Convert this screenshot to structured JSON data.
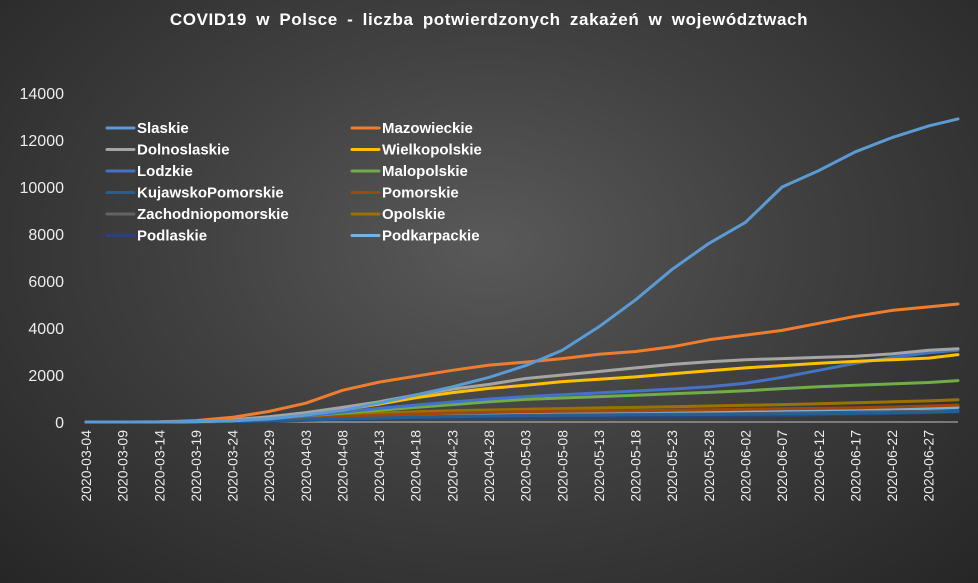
{
  "chart_data": {
    "type": "line",
    "title": "COVID19  w Polsce  - liczba potwierdzonych  zakażeń  w województwach",
    "xlabel": "",
    "ylabel": "",
    "ylim": [
      0,
      14000
    ],
    "y_ticks": [
      0,
      2000,
      4000,
      6000,
      8000,
      10000,
      12000,
      14000
    ],
    "x_tick_labels": [
      "2020-03-04",
      "2020-03-09",
      "2020-03-14",
      "2020-03-19",
      "2020-03-24",
      "2020-03-29",
      "2020-04-03",
      "2020-04-08",
      "2020-04-13",
      "2020-04-18",
      "2020-04-23",
      "2020-04-28",
      "2020-05-03",
      "2020-05-08",
      "2020-05-13",
      "2020-05-18",
      "2020-05-23",
      "2020-05-28",
      "2020-06-02",
      "2020-06-07",
      "2020-06-12",
      "2020-06-17",
      "2020-06-22",
      "2020-06-27"
    ],
    "x": [
      "2020-03-04",
      "2020-03-09",
      "2020-03-14",
      "2020-03-19",
      "2020-03-24",
      "2020-03-29",
      "2020-04-03",
      "2020-04-08",
      "2020-04-13",
      "2020-04-18",
      "2020-04-23",
      "2020-04-28",
      "2020-05-03",
      "2020-05-08",
      "2020-05-13",
      "2020-05-18",
      "2020-05-23",
      "2020-05-28",
      "2020-06-02",
      "2020-06-07",
      "2020-06-12",
      "2020-06-17",
      "2020-06-22",
      "2020-06-27",
      "2020-07-01"
    ],
    "grid": false,
    "legend_position": "top-left",
    "series": [
      {
        "name": "Slaskie",
        "color": "#5b9bd5",
        "values": [
          0,
          0,
          0,
          20,
          60,
          140,
          300,
          500,
          800,
          1150,
          1500,
          1900,
          2400,
          3050,
          4050,
          5200,
          6500,
          7600,
          8500,
          10000,
          10700,
          11500,
          12100,
          12600,
          12900
        ]
      },
      {
        "name": "Mazowieckie",
        "color": "#ed7d31",
        "values": [
          0,
          0,
          5,
          60,
          200,
          450,
          800,
          1350,
          1700,
          1950,
          2200,
          2420,
          2550,
          2700,
          2880,
          3000,
          3200,
          3500,
          3700,
          3900,
          4200,
          4500,
          4750,
          4900,
          5020
        ]
      },
      {
        "name": "Dolnoslaskie",
        "color": "#a5a5a5",
        "values": [
          0,
          0,
          3,
          25,
          100,
          220,
          400,
          620,
          860,
          1150,
          1400,
          1600,
          1850,
          2000,
          2150,
          2300,
          2450,
          2560,
          2650,
          2700,
          2750,
          2800,
          2900,
          3050,
          3120
        ]
      },
      {
        "name": "Wielkopolskie",
        "color": "#ffc000",
        "values": [
          0,
          0,
          2,
          15,
          60,
          150,
          300,
          520,
          760,
          1030,
          1250,
          1430,
          1560,
          1720,
          1820,
          1920,
          2050,
          2180,
          2300,
          2400,
          2500,
          2580,
          2650,
          2720,
          2870
        ]
      },
      {
        "name": "Lodzkie",
        "color": "#4472c4",
        "values": [
          0,
          0,
          1,
          10,
          50,
          120,
          260,
          420,
          580,
          720,
          850,
          980,
          1080,
          1160,
          1240,
          1320,
          1400,
          1500,
          1650,
          1900,
          2200,
          2500,
          2750,
          2950,
          3050
        ]
      },
      {
        "name": "Malopolskie",
        "color": "#70ad47",
        "values": [
          0,
          0,
          2,
          15,
          60,
          140,
          260,
          380,
          500,
          620,
          740,
          860,
          960,
          1020,
          1080,
          1140,
          1200,
          1260,
          1330,
          1420,
          1500,
          1560,
          1620,
          1680,
          1760
        ]
      },
      {
        "name": "KujawskoPomorskie",
        "color": "#255e91",
        "values": [
          0,
          0,
          0,
          5,
          20,
          50,
          90,
          130,
          170,
          200,
          230,
          250,
          270,
          280,
          290,
          300,
          310,
          320,
          330,
          340,
          350,
          370,
          390,
          420,
          450
        ]
      },
      {
        "name": "Pomorskie",
        "color": "#9e480e",
        "values": [
          0,
          0,
          1,
          10,
          40,
          90,
          160,
          230,
          290,
          340,
          380,
          410,
          440,
          460,
          470,
          480,
          500,
          520,
          540,
          560,
          580,
          600,
          640,
          680,
          720
        ]
      },
      {
        "name": "Zachodniopomorskie",
        "color": "#636363",
        "values": [
          0,
          0,
          0,
          5,
          25,
          60,
          110,
          150,
          190,
          220,
          240,
          260,
          280,
          300,
          310,
          320,
          330,
          340,
          350,
          360,
          380,
          400,
          420,
          450,
          480
        ]
      },
      {
        "name": "Opolskie",
        "color": "#997300",
        "values": [
          0,
          0,
          1,
          10,
          40,
          100,
          200,
          300,
          380,
          440,
          480,
          510,
          540,
          570,
          600,
          620,
          650,
          680,
          710,
          740,
          780,
          820,
          860,
          900,
          950
        ]
      },
      {
        "name": "Podlaskie",
        "color": "#264478",
        "values": [
          0,
          0,
          0,
          5,
          20,
          40,
          70,
          100,
          130,
          150,
          160,
          170,
          180,
          190,
          200,
          210,
          220,
          230,
          250,
          270,
          300,
          330,
          360,
          400,
          430
        ]
      },
      {
        "name": "Podkarpackie",
        "color": "#7cafdd",
        "values": [
          0,
          0,
          0,
          5,
          30,
          80,
          140,
          200,
          260,
          300,
          330,
          350,
          370,
          390,
          400,
          420,
          440,
          460,
          480,
          500,
          520,
          540,
          560,
          580,
          620
        ]
      }
    ]
  }
}
